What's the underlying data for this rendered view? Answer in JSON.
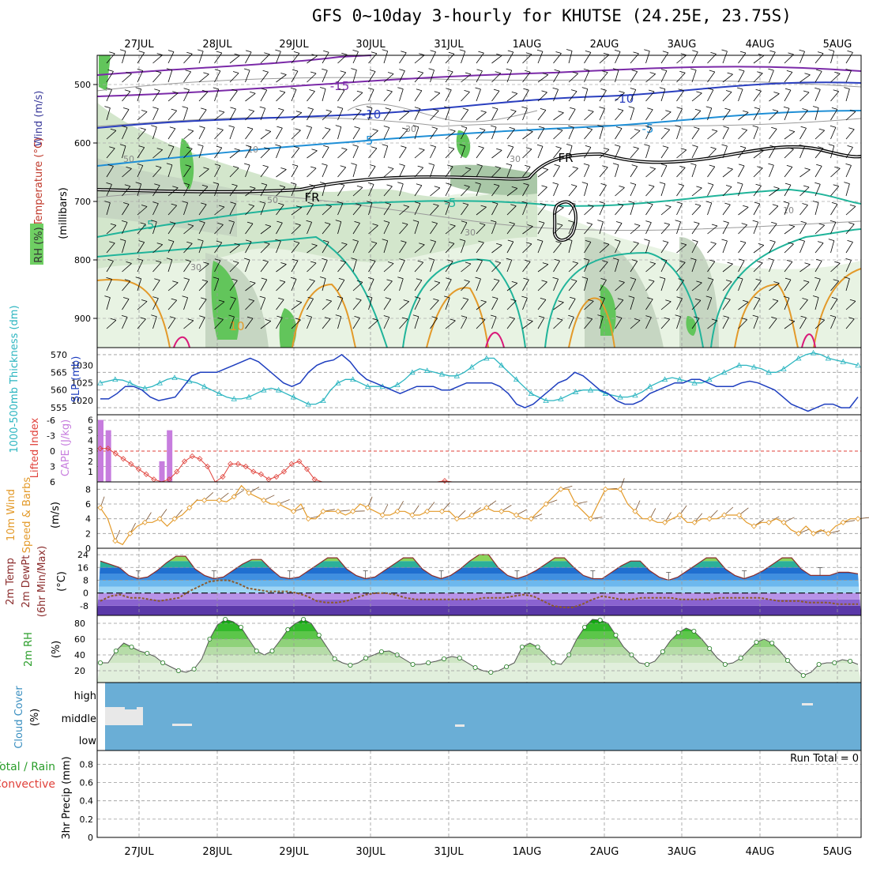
{
  "title": "GFS 0~10day 3-hourly for KHUTSE (24.25E, 23.75S)",
  "dates": [
    "27JUL",
    "28JUL",
    "29JUL",
    "30JUL",
    "31JUL",
    "1AUG",
    "2AUG",
    "3AUG",
    "4AUG",
    "5AUG"
  ],
  "chart_data": [
    {
      "type": "area",
      "panel": "upper-air",
      "ylabel_parts": [
        {
          "text": "RH (%)",
          "color": "#2a9d2a"
        },
        {
          "text": "Temperature (°C)",
          "color": "#c0392b"
        },
        {
          "text": "Wind (m/s)",
          "color": "#3a3a9a"
        }
      ],
      "yaxis_label": "(millibars)",
      "yticks": [
        500,
        600,
        700,
        800,
        900
      ],
      "ylim": [
        450,
        950
      ],
      "contour_labels": [
        "-15",
        "-10",
        "-10",
        "-5",
        "-5",
        "-5",
        "-5",
        "FR",
        "FR",
        "10"
      ],
      "rh_labels": [
        "30",
        "50",
        "10",
        "30",
        "50",
        "30",
        "30",
        "10"
      ]
    },
    {
      "type": "line",
      "panel": "thickness-slp",
      "ylabel_left": "1000-500mb Thickness (dm)",
      "ylabel_right": "SLP (mb)",
      "yticks_left": [
        555,
        560,
        565,
        570
      ],
      "yticks_right": [
        1020,
        1025,
        1030
      ],
      "series": [
        {
          "name": "SLP (mb)",
          "color": "#1f3fbf",
          "values": [
            1020.5,
            1020.5,
            1022,
            1024,
            1024,
            1023,
            1021,
            1020,
            1020.5,
            1021,
            1024,
            1027,
            1028,
            1028,
            1028,
            1029,
            1030,
            1031,
            1032,
            1031,
            1029,
            1027,
            1025,
            1024,
            1025,
            1028,
            1030,
            1031,
            1031.5,
            1033,
            1031,
            1028,
            1026,
            1025,
            1024,
            1023,
            1022,
            1023,
            1024,
            1024,
            1024,
            1023,
            1023,
            1024,
            1025,
            1025,
            1025,
            1025,
            1024,
            1022,
            1019,
            1018,
            1019,
            1021,
            1023,
            1025,
            1026,
            1028,
            1027,
            1025,
            1023,
            1022,
            1020,
            1019,
            1019,
            1020,
            1022,
            1023,
            1024,
            1025,
            1025,
            1026,
            1026,
            1025,
            1024,
            1024,
            1024,
            1025,
            1025.5,
            1025,
            1024,
            1023,
            1021,
            1019,
            1018,
            1017,
            1018,
            1019,
            1019,
            1018,
            1018,
            1021
          ]
        },
        {
          "name": "1000-500mb Thickness (dm)",
          "color": "#2bb5c0",
          "values": [
            562,
            562.5,
            563,
            562.8,
            562,
            561,
            560.5,
            561,
            562,
            563,
            563.5,
            563,
            562.5,
            562,
            561,
            560,
            559,
            558,
            557.5,
            557.5,
            558,
            559,
            560,
            560.5,
            560,
            559,
            558,
            557,
            556,
            556,
            557,
            560,
            562,
            563,
            563,
            562,
            561,
            561,
            561,
            560.5,
            561.5,
            563,
            565,
            566,
            565.5,
            565,
            564.5,
            564,
            564,
            565,
            566.5,
            568,
            569,
            569,
            567,
            565,
            563,
            561,
            559,
            558,
            557,
            557,
            557.5,
            558.5,
            559.5,
            560,
            560,
            560,
            559,
            558.5,
            558,
            558,
            558.5,
            559.5,
            561,
            562,
            563,
            563.5,
            563,
            562.5,
            562,
            562,
            563,
            564,
            565,
            566,
            567,
            567,
            566.5,
            566,
            565,
            565,
            566,
            567.5,
            569,
            570,
            570.5,
            570,
            569,
            568.5,
            568,
            567.5,
            567
          ]
        }
      ]
    },
    {
      "type": "bar",
      "panel": "cape-li",
      "ylabel_left": "Lifted Index",
      "ylabel_right": "CAPE (J/kg)",
      "yticks_left": [
        "-6",
        "-3",
        "0",
        "3",
        "6"
      ],
      "yticks_right": [
        1,
        2,
        3,
        4,
        5,
        6
      ],
      "cape_bars": [
        {
          "x": 0,
          "v": 6
        },
        {
          "x": 1,
          "v": 5
        },
        {
          "x": 8,
          "v": 2
        },
        {
          "x": 9,
          "v": 5
        }
      ],
      "lifted_index": [
        -0.5,
        -0.5,
        0.5,
        1.5,
        2.5,
        3.5,
        4.5,
        5.5,
        6,
        5.5,
        4,
        2,
        1,
        1.5,
        3,
        6,
        5,
        2.5,
        2.5,
        3,
        4,
        4.5,
        5.5,
        5,
        4,
        2.5,
        2,
        3.5,
        5.5,
        6,
        6,
        6,
        6,
        6,
        6,
        6,
        6,
        6,
        6,
        6,
        6,
        6,
        6,
        6,
        6,
        5.8,
        6,
        6,
        6,
        6
      ]
    },
    {
      "type": "line",
      "panel": "wind10m",
      "ylabel_left": "10m Wind Speed & Barbs",
      "units": "(m/s)",
      "yticks": [
        0,
        2,
        4,
        6,
        8
      ],
      "series": [
        {
          "name": "10m Wind Speed",
          "color": "#e39a2a",
          "values": [
            5.5,
            4,
            1,
            0.5,
            2,
            3,
            3.5,
            3.5,
            4,
            3,
            4,
            4.5,
            5.5,
            6.5,
            6.5,
            6.5,
            6.5,
            6.3,
            7,
            8.5,
            7.5,
            7,
            6.5,
            6,
            6,
            5.5,
            5,
            6,
            4,
            4,
            5,
            5,
            5,
            4.5,
            5,
            6,
            5.5,
            5,
            4.5,
            4.5,
            5,
            5,
            4.5,
            4.5,
            5,
            5,
            5,
            5,
            4,
            4,
            4.5,
            5,
            5.5,
            5,
            5,
            5,
            4.5,
            4,
            4,
            5,
            6,
            7,
            8,
            8,
            6,
            5,
            4,
            6,
            8,
            8,
            8,
            6,
            5,
            4,
            4,
            3.5,
            3.5,
            4,
            4.5,
            3.5,
            3.5,
            4,
            4,
            4,
            4.5,
            4.5,
            4.5,
            3.5,
            3,
            3.5,
            3.5,
            4,
            3.5,
            2.5,
            2,
            3,
            2,
            2.5,
            2,
            3,
            3.5,
            4,
            4
          ]
        }
      ]
    },
    {
      "type": "line",
      "panel": "temp2m",
      "ylabel_left": "2m Temp 2m DewPt (6hr Min/Max)",
      "units": "(°C)",
      "yticks": [
        -8,
        0,
        8,
        16,
        24
      ],
      "series": [
        {
          "name": "2m Temp",
          "color": "#8b2d2d",
          "values": [
            20,
            18,
            16,
            11,
            9,
            10,
            14,
            19,
            23,
            23,
            15,
            11,
            9,
            10,
            14,
            18,
            21,
            21,
            15,
            10,
            9,
            10,
            14,
            18,
            22,
            22,
            15,
            11,
            9,
            10,
            14,
            18,
            22,
            22,
            15,
            11,
            9,
            11,
            15,
            20,
            24,
            24,
            16,
            11,
            9,
            11,
            14,
            18,
            22,
            22,
            16,
            11,
            9,
            9,
            13,
            17,
            20,
            20,
            14,
            10,
            8,
            10,
            14,
            18,
            22,
            22,
            15,
            11,
            9,
            11,
            14,
            18,
            22,
            22,
            15,
            11,
            11,
            11,
            13,
            13,
            12
          ]
        },
        {
          "name": "2m DewPt",
          "color": "#8b5a2b",
          "values": [
            -5,
            -2,
            -1,
            -3,
            -3,
            -4,
            -5,
            -4,
            -3,
            1,
            4,
            7,
            8,
            8,
            6,
            3,
            2,
            1,
            1,
            1,
            0,
            -2,
            -5,
            -6,
            -6,
            -5,
            -3,
            -1,
            0,
            0,
            -1,
            -3,
            -4,
            -4,
            -4,
            -4,
            -4,
            -4,
            -4,
            -3,
            -3,
            -3,
            -2,
            -1,
            -2,
            -5,
            -8,
            -9,
            -9,
            -7,
            -4,
            -2,
            -3,
            -4,
            -4,
            -3,
            -3,
            -3,
            -3,
            -4,
            -4,
            -4,
            -4,
            -3,
            -3,
            -3,
            -3,
            -3,
            -4,
            -5,
            -5,
            -5,
            -6,
            -6,
            -6,
            -7,
            -7,
            -7
          ]
        }
      ]
    },
    {
      "type": "area",
      "panel": "rh2m",
      "ylabel_left": "2m RH",
      "units": "(%)",
      "yticks": [
        20,
        40,
        60,
        80
      ],
      "series": [
        {
          "name": "2m RH",
          "color": "#1a7a1a",
          "values": [
            30,
            30,
            45,
            55,
            50,
            45,
            42,
            38,
            30,
            25,
            20,
            18,
            22,
            35,
            60,
            78,
            85,
            82,
            75,
            60,
            45,
            40,
            45,
            58,
            72,
            80,
            85,
            80,
            65,
            50,
            35,
            30,
            27,
            30,
            36,
            40,
            44,
            45,
            40,
            34,
            28,
            28,
            30,
            32,
            35,
            38,
            36,
            30,
            24,
            20,
            18,
            20,
            25,
            30,
            50,
            55,
            50,
            40,
            30,
            28,
            40,
            60,
            75,
            85,
            84,
            80,
            65,
            50,
            40,
            30,
            28,
            32,
            44,
            58,
            68,
            74,
            70,
            60,
            48,
            36,
            28,
            30,
            36,
            46,
            56,
            60,
            55,
            45,
            33,
            22,
            14,
            18,
            28,
            30,
            30,
            34,
            32,
            28
          ]
        }
      ]
    },
    {
      "type": "heatmap",
      "panel": "cloud",
      "ylabel_left": "Cloud Cover",
      "units": "(%)",
      "yticks": [
        "high",
        "middle",
        "low"
      ]
    },
    {
      "type": "bar",
      "panel": "precip",
      "ylabel_left": "Total / Rain",
      "ylabel_left2": "Convective",
      "ylabel_right": "3hr Precip (mm)",
      "yticks": [
        0,
        0.2,
        0.4,
        0.6,
        0.8
      ],
      "annotation": "Run Total = 0"
    }
  ]
}
